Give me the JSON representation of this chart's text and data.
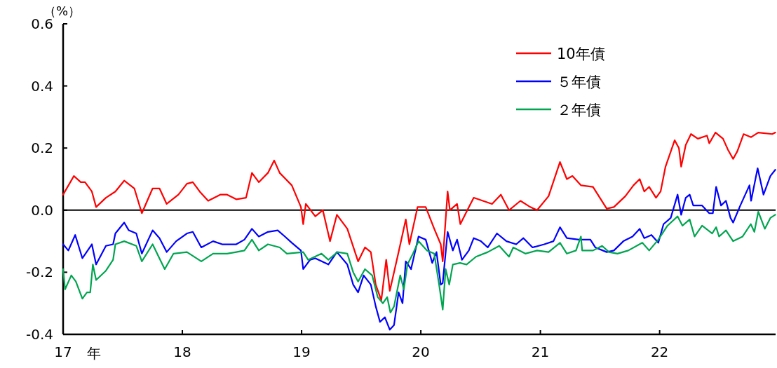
{
  "chart_data": {
    "type": "line",
    "ylabel": "（%）",
    "xlabel": "年",
    "xlim": [
      "2017-01-01",
      "2022-12-22"
    ],
    "xticks": [
      {
        "value": "2017-01-01",
        "label": "17"
      },
      {
        "value": "2018-01-01",
        "label": "18"
      },
      {
        "value": "2019-01-01",
        "label": "19"
      },
      {
        "value": "2020-01-01",
        "label": "20"
      },
      {
        "value": "2021-01-01",
        "label": "21"
      },
      {
        "value": "2022-01-01",
        "label": "22"
      }
    ],
    "ylim": [
      -0.4,
      0.6
    ],
    "yticks": [
      0.6,
      0.4,
      0.2,
      {
        "value": 0,
        "label": "0.0"
      },
      -0.2,
      -0.4
    ],
    "legend": "top right",
    "ref_lines": [
      {
        "axis": "y",
        "value": 0,
        "color": "#000000"
      }
    ],
    "series": [
      {
        "name": "10年債",
        "color": "#ff0000",
        "x": [
          "2017-01-01",
          "2017-02-03",
          "2017-02-24",
          "2017-03-09",
          "2017-03-30",
          "2017-04-12",
          "2017-05-12",
          "2017-06-10",
          "2017-07-07",
          "2017-08-07",
          "2017-08-30",
          "2017-10-02",
          "2017-10-23",
          "2017-11-14",
          "2017-12-20",
          "2018-01-15",
          "2018-02-02",
          "2018-02-23",
          "2018-03-21",
          "2018-04-27",
          "2018-05-18",
          "2018-06-15",
          "2018-07-15",
          "2018-08-02",
          "2018-08-23",
          "2018-09-20",
          "2018-10-09",
          "2018-10-26",
          "2018-12-02",
          "2018-12-30",
          "2019-01-06",
          "2019-01-14",
          "2019-02-12",
          "2019-03-07",
          "2019-03-29",
          "2019-04-19",
          "2019-05-21",
          "2019-06-23",
          "2019-07-14",
          "2019-08-01",
          "2019-08-16",
          "2019-09-02",
          "2019-09-17",
          "2019-09-28",
          "2019-10-25",
          "2019-11-16",
          "2019-11-27",
          "2019-12-22",
          "2020-01-16",
          "2020-02-11",
          "2020-03-02",
          "2020-03-08",
          "2020-03-23",
          "2020-03-30",
          "2020-04-21",
          "2020-05-01",
          "2020-05-20",
          "2020-06-11",
          "2020-07-09",
          "2020-08-06",
          "2020-09-02",
          "2020-09-27",
          "2020-11-01",
          "2020-12-01",
          "2020-12-22",
          "2021-01-26",
          "2021-03-02",
          "2021-03-23",
          "2021-04-09",
          "2021-05-05",
          "2021-06-11",
          "2021-07-02",
          "2021-07-23",
          "2021-08-14",
          "2021-09-18",
          "2021-10-13",
          "2021-11-01",
          "2021-11-15",
          "2021-11-30",
          "2021-12-21",
          "2022-01-04",
          "2022-01-19",
          "2022-02-16",
          "2022-03-01",
          "2022-03-08",
          "2022-03-22",
          "2022-04-07",
          "2022-04-28",
          "2022-05-26",
          "2022-06-02",
          "2022-06-21",
          "2022-07-14",
          "2022-07-29",
          "2022-08-14",
          "2022-08-27",
          "2022-09-15",
          "2022-10-08",
          "2022-10-30",
          "2022-12-12",
          "2022-12-21"
        ],
        "values": [
          0.05,
          0.11,
          0.09,
          0.09,
          0.06,
          0.01,
          0.04,
          0.06,
          0.095,
          0.07,
          -0.01,
          0.07,
          0.07,
          0.02,
          0.05,
          0.085,
          0.09,
          0.06,
          0.03,
          0.05,
          0.05,
          0.035,
          0.04,
          0.12,
          0.09,
          0.12,
          0.16,
          0.12,
          0.08,
          0.01,
          -0.045,
          0.02,
          -0.02,
          0.0,
          -0.1,
          -0.015,
          -0.06,
          -0.165,
          -0.12,
          -0.135,
          -0.24,
          -0.29,
          -0.16,
          -0.26,
          -0.135,
          -0.03,
          -0.11,
          0.01,
          0.01,
          -0.06,
          -0.11,
          -0.165,
          0.06,
          0.0,
          0.02,
          -0.045,
          -0.005,
          0.04,
          0.03,
          0.02,
          0.05,
          0.0,
          0.03,
          0.01,
          0.0,
          0.045,
          0.155,
          0.1,
          0.11,
          0.08,
          0.075,
          0.04,
          0.005,
          0.01,
          0.045,
          0.08,
          0.1,
          0.06,
          0.075,
          0.04,
          0.06,
          0.14,
          0.225,
          0.2,
          0.14,
          0.21,
          0.245,
          0.23,
          0.24,
          0.215,
          0.25,
          0.23,
          0.195,
          0.165,
          0.19,
          0.245,
          0.235,
          0.25,
          0.245,
          0.25
        ]
      },
      {
        "name": "５年債",
        "color": "#0000ff",
        "x": [
          "2017-01-01",
          "2017-01-17",
          "2017-02-07",
          "2017-03-01",
          "2017-03-30",
          "2017-04-12",
          "2017-05-12",
          "2017-06-03",
          "2017-06-10",
          "2017-07-07",
          "2017-07-21",
          "2017-08-13",
          "2017-08-30",
          "2017-10-02",
          "2017-10-23",
          "2017-11-14",
          "2017-12-13",
          "2018-01-15",
          "2018-02-02",
          "2018-02-28",
          "2018-04-05",
          "2018-05-03",
          "2018-06-15",
          "2018-07-10",
          "2018-08-02",
          "2018-08-23",
          "2018-09-20",
          "2018-10-20",
          "2018-11-11",
          "2018-12-02",
          "2018-12-30",
          "2019-01-06",
          "2019-01-27",
          "2019-02-12",
          "2019-03-24",
          "2019-04-19",
          "2019-05-21",
          "2019-06-08",
          "2019-06-23",
          "2019-07-10",
          "2019-08-01",
          "2019-08-16",
          "2019-08-29",
          "2019-09-13",
          "2019-09-28",
          "2019-10-11",
          "2019-10-25",
          "2019-11-06",
          "2019-11-16",
          "2019-12-02",
          "2019-12-25",
          "2020-01-16",
          "2020-02-05",
          "2020-02-18",
          "2020-03-02",
          "2020-03-08",
          "2020-03-23",
          "2020-04-08",
          "2020-04-21",
          "2020-05-06",
          "2020-05-27",
          "2020-06-11",
          "2020-07-03",
          "2020-07-24",
          "2020-08-21",
          "2020-09-19",
          "2020-10-19",
          "2020-11-10",
          "2020-12-08",
          "2021-01-13",
          "2021-02-10",
          "2021-03-02",
          "2021-03-23",
          "2021-04-29",
          "2021-06-03",
          "2021-06-18",
          "2021-07-23",
          "2021-08-14",
          "2021-09-12",
          "2021-10-10",
          "2021-11-01",
          "2021-11-15",
          "2021-12-07",
          "2021-12-28",
          "2022-01-13",
          "2022-02-04",
          "2022-02-25",
          "2022-03-08",
          "2022-03-22",
          "2022-04-03",
          "2022-04-14",
          "2022-05-11",
          "2022-06-02",
          "2022-06-13",
          "2022-06-23",
          "2022-07-08",
          "2022-07-23",
          "2022-08-06",
          "2022-08-14",
          "2022-09-05",
          "2022-10-03",
          "2022-10-08",
          "2022-10-28",
          "2022-11-15",
          "2022-12-06",
          "2022-12-21"
        ],
        "values": [
          -0.11,
          -0.13,
          -0.08,
          -0.155,
          -0.11,
          -0.175,
          -0.115,
          -0.11,
          -0.075,
          -0.04,
          -0.065,
          -0.075,
          -0.14,
          -0.065,
          -0.09,
          -0.135,
          -0.1,
          -0.075,
          -0.07,
          -0.12,
          -0.1,
          -0.11,
          -0.11,
          -0.095,
          -0.06,
          -0.085,
          -0.07,
          -0.065,
          -0.085,
          -0.105,
          -0.13,
          -0.19,
          -0.16,
          -0.155,
          -0.175,
          -0.135,
          -0.175,
          -0.24,
          -0.265,
          -0.21,
          -0.24,
          -0.31,
          -0.36,
          -0.345,
          -0.385,
          -0.37,
          -0.265,
          -0.3,
          -0.165,
          -0.19,
          -0.085,
          -0.095,
          -0.17,
          -0.135,
          -0.24,
          -0.235,
          -0.07,
          -0.13,
          -0.095,
          -0.16,
          -0.13,
          -0.09,
          -0.1,
          -0.12,
          -0.075,
          -0.1,
          -0.11,
          -0.09,
          -0.12,
          -0.11,
          -0.1,
          -0.055,
          -0.09,
          -0.095,
          -0.095,
          -0.12,
          -0.135,
          -0.13,
          -0.1,
          -0.085,
          -0.06,
          -0.09,
          -0.08,
          -0.105,
          -0.045,
          -0.025,
          0.05,
          -0.015,
          0.04,
          0.05,
          0.015,
          0.015,
          -0.01,
          -0.01,
          0.075,
          0.015,
          0.03,
          -0.025,
          -0.04,
          0.015,
          0.08,
          0.03,
          0.135,
          0.05,
          0.11,
          0.13
        ]
      },
      {
        "name": "２年債",
        "color": "#00a550",
        "x": [
          "2017-01-01",
          "2017-01-07",
          "2017-01-26",
          "2017-02-09",
          "2017-03-01",
          "2017-03-15",
          "2017-03-25",
          "2017-04-02",
          "2017-04-12",
          "2017-05-12",
          "2017-06-03",
          "2017-06-10",
          "2017-07-07",
          "2017-08-13",
          "2017-08-30",
          "2017-10-02",
          "2017-11-08",
          "2017-12-05",
          "2018-01-15",
          "2018-02-28",
          "2018-04-05",
          "2018-05-18",
          "2018-06-15",
          "2018-07-10",
          "2018-08-02",
          "2018-08-23",
          "2018-09-20",
          "2018-10-26",
          "2018-11-17",
          "2019-01-06",
          "2019-01-21",
          "2019-03-03",
          "2019-03-24",
          "2019-04-21",
          "2019-05-21",
          "2019-06-08",
          "2019-06-23",
          "2019-07-14",
          "2019-08-05",
          "2019-08-22",
          "2019-09-07",
          "2019-09-20",
          "2019-09-30",
          "2019-10-11",
          "2019-10-30",
          "2019-11-10",
          "2019-11-21",
          "2019-12-08",
          "2019-12-25",
          "2020-01-20",
          "2020-02-11",
          "2020-02-26",
          "2020-03-08",
          "2020-03-17",
          "2020-03-28",
          "2020-04-08",
          "2020-04-30",
          "2020-05-20",
          "2020-06-18",
          "2020-07-24",
          "2020-08-28",
          "2020-09-27",
          "2020-10-10",
          "2020-11-16",
          "2020-12-22",
          "2021-01-26",
          "2021-03-02",
          "2021-03-23",
          "2021-04-20",
          "2021-05-05",
          "2021-05-09",
          "2021-06-11",
          "2021-07-09",
          "2021-07-30",
          "2021-08-25",
          "2021-09-27",
          "2021-11-09",
          "2021-11-30",
          "2021-12-28",
          "2022-01-25",
          "2022-02-25",
          "2022-03-12",
          "2022-04-03",
          "2022-04-18",
          "2022-05-11",
          "2022-06-11",
          "2022-06-23",
          "2022-07-02",
          "2022-07-23",
          "2022-08-14",
          "2022-09-12",
          "2022-10-07",
          "2022-10-18",
          "2022-10-30",
          "2022-11-19",
          "2022-12-06",
          "2022-12-21"
        ],
        "values": [
          -0.19,
          -0.255,
          -0.21,
          -0.23,
          -0.285,
          -0.265,
          -0.265,
          -0.175,
          -0.225,
          -0.195,
          -0.16,
          -0.11,
          -0.1,
          -0.115,
          -0.165,
          -0.11,
          -0.19,
          -0.14,
          -0.135,
          -0.165,
          -0.14,
          -0.14,
          -0.135,
          -0.13,
          -0.095,
          -0.13,
          -0.11,
          -0.12,
          -0.14,
          -0.135,
          -0.16,
          -0.14,
          -0.16,
          -0.135,
          -0.14,
          -0.2,
          -0.23,
          -0.19,
          -0.21,
          -0.28,
          -0.3,
          -0.28,
          -0.33,
          -0.31,
          -0.21,
          -0.255,
          -0.175,
          -0.14,
          -0.1,
          -0.13,
          -0.14,
          -0.24,
          -0.32,
          -0.19,
          -0.24,
          -0.175,
          -0.17,
          -0.175,
          -0.15,
          -0.135,
          -0.115,
          -0.15,
          -0.12,
          -0.14,
          -0.13,
          -0.135,
          -0.105,
          -0.14,
          -0.13,
          -0.085,
          -0.13,
          -0.13,
          -0.115,
          -0.135,
          -0.14,
          -0.13,
          -0.105,
          -0.13,
          -0.095,
          -0.05,
          -0.02,
          -0.05,
          -0.03,
          -0.085,
          -0.05,
          -0.075,
          -0.055,
          -0.085,
          -0.065,
          -0.1,
          -0.085,
          -0.045,
          -0.07,
          -0.005,
          -0.06,
          -0.025,
          -0.015
        ]
      }
    ]
  }
}
